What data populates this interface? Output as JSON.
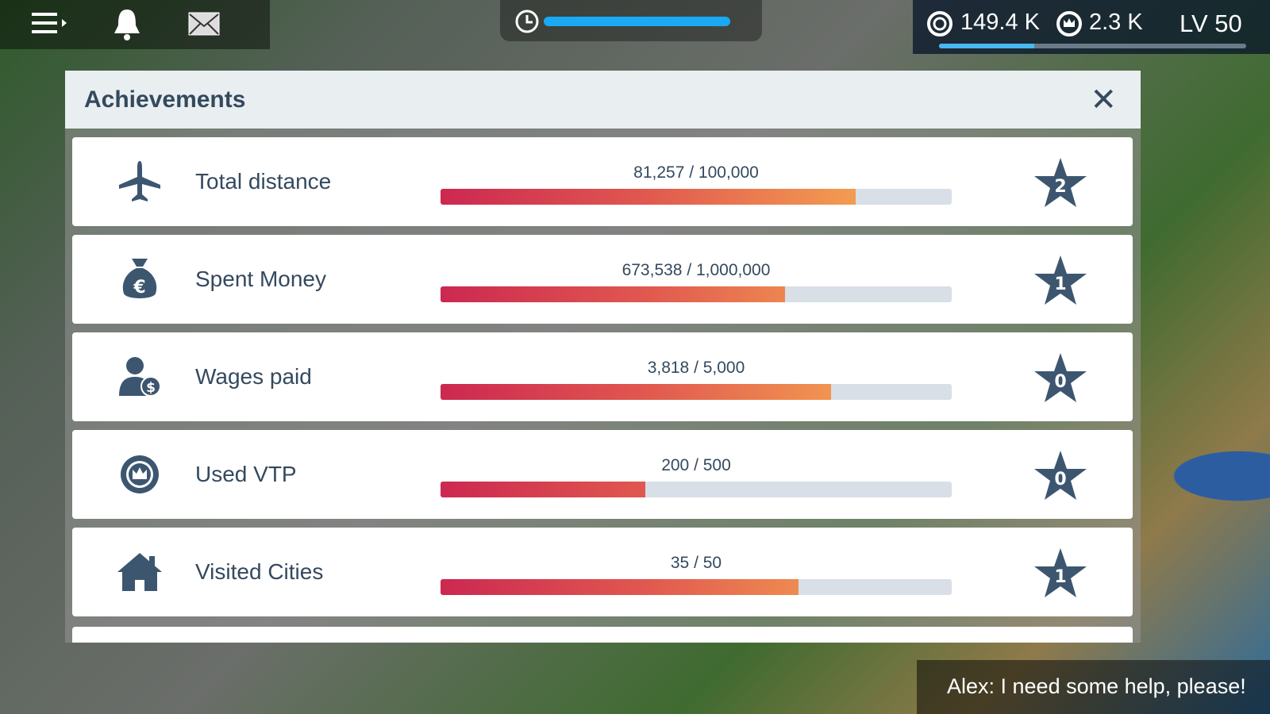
{
  "hud": {
    "coins": "149.4 K",
    "vtp": "2.3 K",
    "level": "LV 50",
    "xp_progress": 0.31,
    "timer_progress": 1.0
  },
  "modal": {
    "title": "Achievements",
    "close_label": "✕"
  },
  "achievements": [
    {
      "icon": "airplane-icon",
      "label": "Total distance",
      "progress_text": "81,257 / 100,000",
      "fraction": 0.81257,
      "stars": "2"
    },
    {
      "icon": "money-bag-icon",
      "label": "Spent Money",
      "progress_text": "673,538 / 1,000,000",
      "fraction": 0.673538,
      "stars": "1"
    },
    {
      "icon": "wages-icon",
      "label": "Wages paid",
      "progress_text": "3,818 / 5,000",
      "fraction": 0.7636,
      "stars": "0"
    },
    {
      "icon": "vtp-crown-icon",
      "label": "Used VTP",
      "progress_text": "200 / 500",
      "fraction": 0.4,
      "stars": "0"
    },
    {
      "icon": "house-icon",
      "label": "Visited Cities",
      "progress_text": "35 / 50",
      "fraction": 0.7,
      "stars": "1"
    }
  ],
  "notification": "Alex: I need some help, please!",
  "colors": {
    "accent": "#34495e",
    "bar_start": "#cc2850",
    "bar_end": "#f6a75a",
    "hud_blue": "#1aa9f2"
  }
}
